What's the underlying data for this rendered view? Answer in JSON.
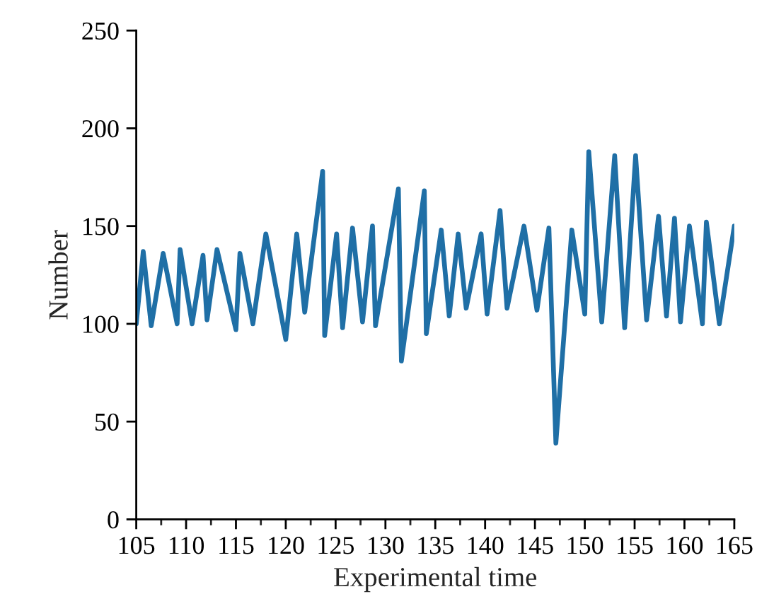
{
  "chart_data": {
    "type": "line",
    "xlabel": "Experimental time",
    "ylabel": "Number",
    "xlim": [
      105,
      165
    ],
    "xticks": [
      105,
      110,
      115,
      120,
      125,
      130,
      135,
      140,
      145,
      150,
      155,
      160,
      165
    ],
    "ylim": [
      0,
      250
    ],
    "yticks": [
      0,
      50,
      100,
      150,
      200,
      250
    ],
    "grid": false,
    "legend": false,
    "marker": "none",
    "line_style": "solid",
    "series": [
      {
        "color": "#1f6fa6",
        "x": [
          105,
          105.7,
          106.5,
          107.7,
          109.1,
          109.4,
          110.6,
          111.7,
          112.1,
          113.1,
          115.0,
          115.4,
          116.7,
          118.0,
          120.0,
          121.1,
          121.9,
          123.7,
          123.9,
          125.1,
          125.7,
          126.7,
          127.7,
          128.7,
          129.0,
          131.3,
          131.6,
          133.9,
          134.1,
          135.6,
          136.4,
          137.3,
          138.1,
          139.6,
          140.2,
          141.5,
          142.2,
          143.9,
          145.2,
          146.4,
          147.1,
          148.7,
          150.0,
          150.4,
          151.7,
          153.0,
          154.0,
          155.1,
          156.2,
          157.4,
          158.2,
          159.0,
          159.6,
          160.5,
          161.8,
          162.2,
          163.5,
          165.0
        ],
        "values": [
          100,
          137,
          99,
          136,
          100,
          138,
          100,
          135,
          102,
          138,
          97,
          136,
          100,
          146,
          92,
          146,
          106,
          178,
          94,
          146,
          98,
          149,
          101,
          150,
          99,
          169,
          81,
          168,
          95,
          148,
          104,
          146,
          108,
          146,
          105,
          158,
          108,
          150,
          107,
          149,
          39,
          148,
          105,
          188,
          101,
          186,
          98,
          186,
          102,
          155,
          104,
          154,
          101,
          150,
          100,
          152,
          100,
          150
        ]
      }
    ]
  }
}
